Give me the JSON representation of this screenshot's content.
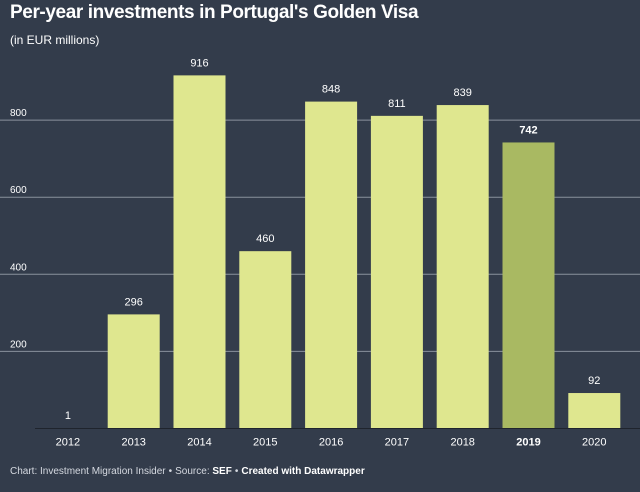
{
  "title": "Per-year investments in Portugal's Golden Visa",
  "subtitle": "(in EUR millions)",
  "footer": {
    "chart_prefix": "Chart: Investment Migration Insider",
    "source_prefix": "Source:",
    "source_name": "SEF",
    "created_with": "Created with Datawrapper"
  },
  "colors": {
    "background": "#333c4b",
    "bar": "#dfe78f",
    "bar_highlight": "#a9b962",
    "gridline": "#8a919c",
    "axis_text": "#ffffff"
  },
  "chart_data": {
    "type": "bar",
    "categories": [
      "2012",
      "2013",
      "2014",
      "2015",
      "2016",
      "2017",
      "2018",
      "2019",
      "2020"
    ],
    "values": [
      1,
      296,
      916,
      460,
      848,
      811,
      839,
      742,
      92
    ],
    "value_labels": [
      "1",
      "296",
      "916",
      "460",
      "848",
      "811",
      "839",
      "742",
      "92"
    ],
    "highlight": "2019",
    "yticks": [
      200,
      400,
      600,
      800
    ],
    "ylim": [
      0,
      1000
    ],
    "grid": true,
    "legend": "none"
  }
}
